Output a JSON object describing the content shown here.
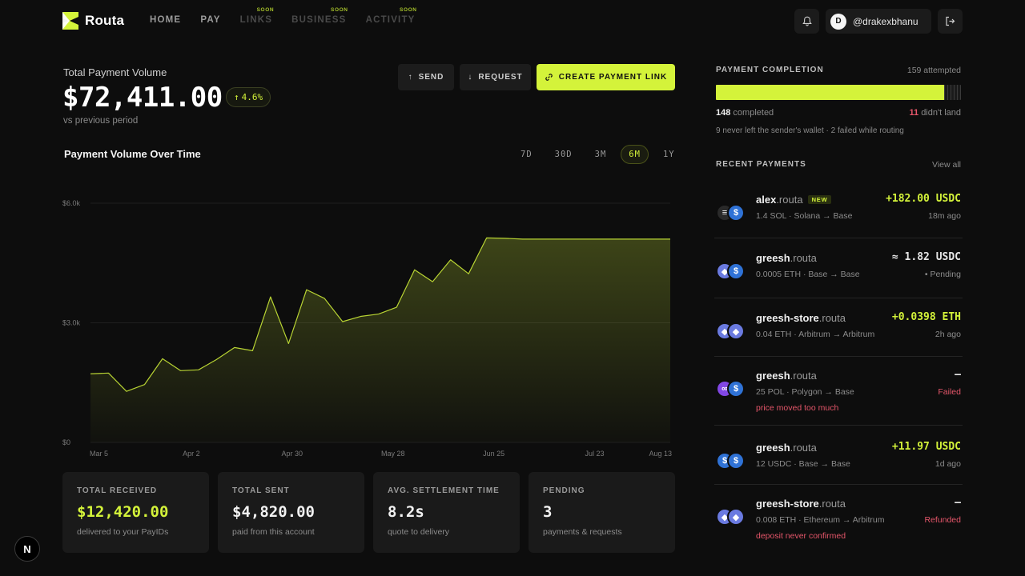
{
  "brand": {
    "name": "Routa"
  },
  "nav": {
    "links": [
      {
        "label": "HOME",
        "soon": ""
      },
      {
        "label": "PAY",
        "soon": ""
      },
      {
        "label": "LINKS",
        "soon": "SOON"
      },
      {
        "label": "BUSINESS",
        "soon": "SOON"
      },
      {
        "label": "ACTIVITY",
        "soon": "SOON"
      }
    ],
    "user": {
      "avatar_initial": "D",
      "handle": "@drakexbhanu"
    }
  },
  "summary": {
    "label": "Total Payment Volume",
    "value": "$72,411.00",
    "change": "4.6%",
    "sub": "vs previous period"
  },
  "actions": {
    "send": "SEND",
    "request": "REQUEST",
    "create_link": "CREATE PAYMENT LINK"
  },
  "chart": {
    "title": "Payment Volume Over Time",
    "ranges": [
      "7D",
      "30D",
      "3M",
      "6M",
      "1Y"
    ],
    "active_range": "6M",
    "accent": "#d4f33a"
  },
  "chart_data": {
    "type": "area",
    "title": "Payment Volume Over Time",
    "xlabel": "",
    "ylabel": "",
    "ylim": [
      0,
      6000
    ],
    "y_ticks": [
      "$0",
      "$3.0k",
      "$6.0k"
    ],
    "y_tick_values": [
      0,
      3000,
      6000
    ],
    "x_tick_labels": [
      "Mar 5",
      "Apr 2",
      "Apr 30",
      "May 28",
      "Jun 25",
      "Jul 23",
      "Aug 13"
    ],
    "x_tick_days": [
      0,
      28,
      56,
      84,
      112,
      140,
      161
    ],
    "grid": true,
    "series": [
      {
        "x_days": [
          0,
          5,
          10,
          15,
          20,
          25,
          30,
          35,
          40,
          45,
          50,
          55,
          60,
          65,
          70,
          75,
          80,
          85,
          90,
          95,
          100,
          105,
          110,
          115,
          120,
          125,
          130,
          135,
          140,
          145,
          150,
          155,
          161
        ],
        "values": [
          1720,
          1740,
          1280,
          1450,
          2100,
          1800,
          1820,
          2080,
          2380,
          2300,
          3650,
          2480,
          3830,
          3610,
          3030,
          3160,
          3220,
          3390,
          4330,
          4030,
          4580,
          4230,
          5130,
          5120,
          5100,
          5100,
          5100,
          5100,
          5100,
          5100,
          5100,
          5100,
          5100
        ]
      }
    ]
  },
  "cards": [
    {
      "label": "TOTAL RECEIVED",
      "value": "$12,420.00",
      "sub": "delivered to your PayIDs",
      "accent": true
    },
    {
      "label": "TOTAL SENT",
      "value": "$4,820.00",
      "sub": "paid from this account",
      "accent": false
    },
    {
      "label": "AVG. SETTLEMENT TIME",
      "value": "8.2s",
      "sub": "quote to delivery",
      "accent": false
    },
    {
      "label": "PENDING",
      "value": "3",
      "sub": "payments & requests",
      "accent": false
    }
  ],
  "completion": {
    "title": "PAYMENT COMPLETION",
    "attempted": "159 attempted",
    "completed_count": "148",
    "completed_label": "completed",
    "failed_count": "11",
    "failed_label": "didn't land",
    "note": "9 never left the sender's wallet · 2 failed while routing",
    "fill_fraction": 0.931
  },
  "recent": {
    "title": "RECENT PAYMENTS",
    "view_all": "View all",
    "items": [
      {
        "name": "alex",
        "domain": ".routa",
        "badge": "NEW",
        "detail": "1.4 SOL · Solana → Base",
        "amount": "+182.00 USDC",
        "status": "18m ago",
        "reason": "",
        "tone": "green",
        "coins": [
          "sol",
          "usdc"
        ]
      },
      {
        "name": "greesh",
        "domain": ".routa",
        "badge": "",
        "detail": "0.0005 ETH · Base → Base",
        "amount": "≈ 1.82 USDC",
        "status": "• Pending",
        "reason": "",
        "tone": "white",
        "coins": [
          "eth",
          "usdc"
        ]
      },
      {
        "name": "greesh-store",
        "domain": ".routa",
        "badge": "",
        "detail": "0.04 ETH · Arbitrum → Arbitrum",
        "amount": "+0.0398 ETH",
        "status": "2h ago",
        "reason": "",
        "tone": "green",
        "coins": [
          "eth",
          "eth"
        ]
      },
      {
        "name": "greesh",
        "domain": ".routa",
        "badge": "",
        "detail": "25 POL · Polygon → Base",
        "amount": "–",
        "status": "Failed",
        "reason": "price moved too much",
        "tone": "white",
        "coins": [
          "pol",
          "usdc"
        ]
      },
      {
        "name": "greesh",
        "domain": ".routa",
        "badge": "",
        "detail": "12 USDC · Base → Base",
        "amount": "+11.97 USDC",
        "status": "1d ago",
        "reason": "",
        "tone": "green",
        "coins": [
          "usdc",
          "usdc"
        ]
      },
      {
        "name": "greesh-store",
        "domain": ".routa",
        "badge": "",
        "detail": "0.008 ETH · Ethereum → Arbitrum",
        "amount": "–",
        "status": "Refunded",
        "reason": "deposit never confirmed",
        "tone": "white",
        "coins": [
          "eth",
          "eth"
        ]
      }
    ]
  },
  "dev_badge": "N"
}
